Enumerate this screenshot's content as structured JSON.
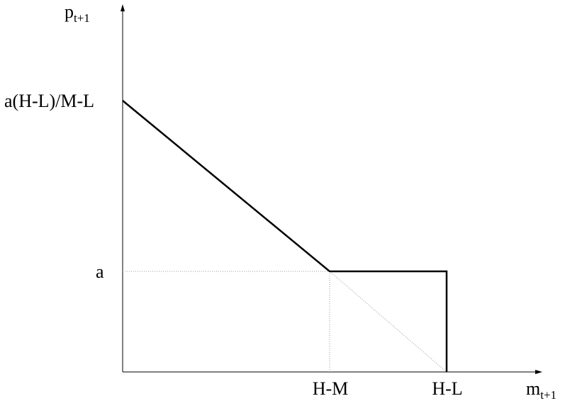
{
  "diagram": {
    "y_axis": {
      "main": "p",
      "sub": "t+1"
    },
    "x_axis": {
      "main": "m",
      "sub": "t+1"
    },
    "y_ticks": {
      "intercept": "a(H-L)/M-L",
      "level": "a"
    },
    "x_ticks": {
      "kink": "H-M",
      "drop": "H-L"
    }
  }
}
